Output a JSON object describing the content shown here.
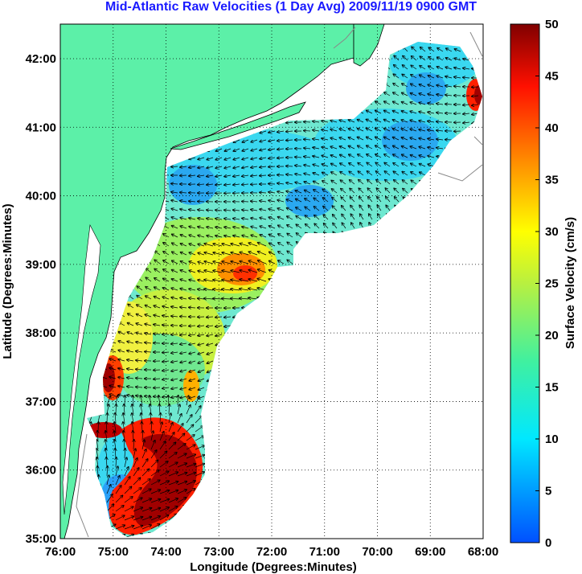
{
  "title": "Mid-Atlantic Raw Velocities (1 Day Avg) 2009/11/19 0900 GMT",
  "map": {
    "xlabel": "Longitude (Degrees:Minutes)",
    "ylabel": "Latitude (Degrees:Minutes)",
    "lon_ticks": [
      "76:00",
      "75:00",
      "74:00",
      "73:00",
      "72:00",
      "71:00",
      "70:00",
      "69:00",
      "68:00"
    ],
    "lat_ticks": [
      "42:00",
      "41:00",
      "40:00",
      "39:00",
      "38:00",
      "37:00",
      "36:00",
      "35:00"
    ],
    "land_color": "#5cf0a8",
    "grid": "dotted"
  },
  "colorbar": {
    "label": "Surface Velocity (cm/s)",
    "ticks": [
      "50",
      "45",
      "40",
      "35",
      "30",
      "25",
      "20",
      "15",
      "10",
      "5",
      "0"
    ],
    "min": 0,
    "max": 50
  }
}
